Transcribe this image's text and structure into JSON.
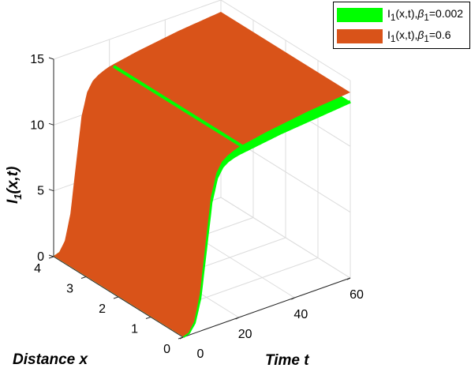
{
  "chart_data": {
    "type": "surface",
    "title": "",
    "xlabel": "Time t",
    "ylabel": "Distance x",
    "zlabel": "I1(x,t)",
    "xlim": [
      0,
      60
    ],
    "ylim": [
      0,
      4
    ],
    "zlim": [
      0,
      15
    ],
    "xticks": [
      "0",
      "20",
      "40",
      "60"
    ],
    "yticks": [
      "0",
      "1",
      "2",
      "3",
      "4"
    ],
    "zticks": [
      "0",
      "5",
      "10",
      "15"
    ],
    "grid": true,
    "legend_position": "top-right",
    "series": [
      {
        "name": "I1(x,t),β1=0.002",
        "label_parts": {
          "a": "I",
          "b": "1",
          "c": "(x,t),",
          "d": "β",
          "e": "1",
          "f": "=0.002"
        },
        "color": "#00ff00",
        "t": [
          0,
          2,
          4,
          6,
          8,
          10,
          12,
          14,
          16,
          18,
          20,
          25,
          30,
          35,
          40,
          45,
          50,
          55,
          60
        ],
        "I1": [
          0.05,
          0.2,
          0.8,
          2.5,
          6.0,
          9.5,
          11.2,
          11.9,
          12.2,
          12.35,
          12.45,
          12.6,
          12.75,
          12.9,
          13.0,
          13.1,
          13.2,
          13.3,
          13.4
        ]
      },
      {
        "name": "I1(x,t),β1=0.6",
        "label_parts": {
          "a": "I",
          "b": "1",
          "c": "(x,t),",
          "d": "β",
          "e": "1",
          "f": "=0.6"
        },
        "color": "#d95319",
        "t": [
          0,
          2,
          4,
          6,
          8,
          10,
          12,
          14,
          16,
          18,
          20,
          25,
          30,
          35,
          40,
          45,
          50,
          55,
          60
        ],
        "I1": [
          0.05,
          0.2,
          0.9,
          2.8,
          6.4,
          9.9,
          11.6,
          12.3,
          12.6,
          12.8,
          12.95,
          13.15,
          13.35,
          13.5,
          13.65,
          13.8,
          13.9,
          14.0,
          14.1
        ]
      }
    ]
  }
}
